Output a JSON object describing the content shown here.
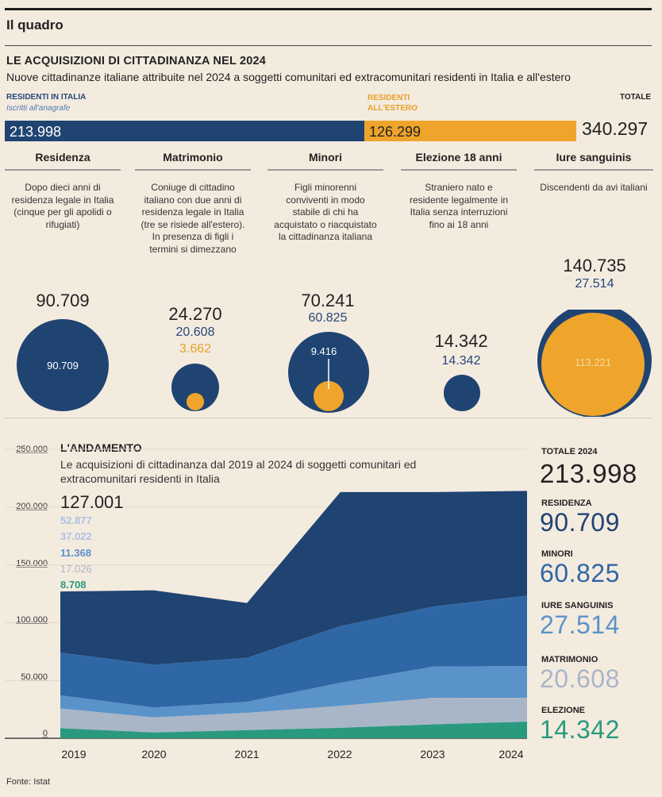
{
  "header": {
    "section": "Il quadro",
    "title": "LE ACQUISIZIONI DI CITTADINANZA  NEL 2024",
    "subtitle": "Nuove cittadinanze italiane attribuite nel 2024 a soggetti comunitari ed extracomunitari residenti in Italia e all'estero"
  },
  "totals_bar": {
    "residenti_italia_label": "RESIDENTI IN ITALIA",
    "residenti_italia_sub": "Iscritti all'anagrafe",
    "residenti_estero_label": "RESIDENTI ALL'ESTERO",
    "totale_label": "TOTALE",
    "italia_value": "213.998",
    "estero_value": "126.299",
    "totale_value": "340.297",
    "italia_share": 0.629,
    "colors": {
      "italia": "#1f4472",
      "estero": "#efa42b"
    }
  },
  "categories": [
    {
      "name": "Residenza",
      "desc": "Dopo dieci anni di residenza legale in Italia (cinque per gli apolidi o rifugiati)",
      "total": "90.709",
      "italia": "",
      "estero": "",
      "circle_label": "90.709"
    },
    {
      "name": "Matrimonio",
      "desc": "Coniuge di cittadino italiano con due anni di residenza legale in Italia (tre se risiede all'estero). In presenza di figli i termini si dimezzano",
      "total": "24.270",
      "italia": "20.608",
      "estero": "3.662",
      "circle_label": ""
    },
    {
      "name": "Minori",
      "desc": "Figli minorenni conviventi in modo stabile di chi ha acquistato o riacquistato la cittadinanza italiana",
      "total": "70.241",
      "italia": "60.825",
      "estero": "",
      "circle_label": "9.416"
    },
    {
      "name": "Elezione 18 anni",
      "desc": "Straniero nato e residente legalmente in Italia senza interruzioni fino ai 18 anni",
      "total": "14.342",
      "italia": "14.342",
      "estero": "",
      "circle_label": ""
    },
    {
      "name": "Iure sanguinis",
      "desc": "Discendenti da avi italiani",
      "total": "140.735",
      "italia": "27.514",
      "estero": "",
      "circle_label": "113.221"
    }
  ],
  "andamento": {
    "title": "L'ANDAMENTO",
    "subtitle": "Le acquisizioni di cittadinanza dal 2019 al 2024 di soggetti comunitari ed extracomunitari residenti in Italia",
    "values_2019": [
      "127.001",
      "52.877",
      "37.022",
      "11.368",
      "17.026",
      "8.708"
    ],
    "side": {
      "totale_label": "TOTALE 2024",
      "totale_value": "213.998",
      "items": [
        {
          "label": "RESIDENZA",
          "value": "90.709",
          "color": "#1f4472"
        },
        {
          "label": "MINORI",
          "value": "60.825",
          "color": "#2f67a6"
        },
        {
          "label": "IURE SANGUINIS",
          "value": "27.514",
          "color": "#5a93c9"
        },
        {
          "label": "MATRIMONIO",
          "value": "20.608",
          "color": "#a9b6c8"
        },
        {
          "label": "ELEZIONE",
          "value": "14.342",
          "color": "#2a9a7e"
        }
      ]
    }
  },
  "chart_data": {
    "type": "area",
    "stacked": true,
    "title": "L'ANDAMENTO",
    "x": [
      "2019",
      "2020",
      "2021",
      "2022",
      "2023",
      "2024"
    ],
    "ylim": [
      0,
      250000
    ],
    "yticks": [
      "0",
      "50.000",
      "100.000",
      "150.000",
      "200.000",
      "250.000"
    ],
    "ytick_values": [
      0,
      50000,
      100000,
      150000,
      200000,
      250000
    ],
    "series": [
      {
        "name": "Elezione",
        "color": "#2a9a7e",
        "values": [
          8708,
          5000,
          7000,
          9000,
          12000,
          14342
        ]
      },
      {
        "name": "Matrimonio",
        "color": "#a9b6c8",
        "values": [
          17026,
          13000,
          15000,
          19000,
          23000,
          20608
        ]
      },
      {
        "name": "Iure sanguinis",
        "color": "#5a93c9",
        "values": [
          11368,
          8500,
          9500,
          20000,
          27000,
          27514
        ]
      },
      {
        "name": "Minori",
        "color": "#2f67a6",
        "values": [
          37022,
          37000,
          38000,
          49000,
          52000,
          60825
        ]
      },
      {
        "name": "Residenza",
        "color": "#1f4472",
        "values": [
          52877,
          64500,
          47500,
          116000,
          99000,
          90709
        ]
      }
    ]
  },
  "fonte": "Fonte: Istat"
}
